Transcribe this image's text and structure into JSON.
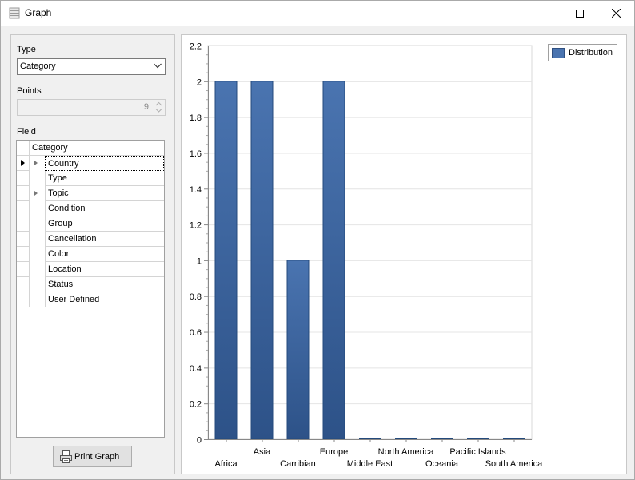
{
  "window": {
    "title": "Graph"
  },
  "controls": {
    "type_label": "Type",
    "type_value": "Category",
    "points_label": "Points",
    "points_value": "9",
    "field_label": "Field",
    "grid_header": "Category",
    "fields": [
      {
        "label": "Country",
        "expandable": true,
        "current": true,
        "selected": true
      },
      {
        "label": "Type",
        "expandable": false,
        "current": false,
        "selected": false
      },
      {
        "label": "Topic",
        "expandable": true,
        "current": false,
        "selected": false
      },
      {
        "label": "Condition",
        "expandable": false,
        "current": false,
        "selected": false
      },
      {
        "label": "Group",
        "expandable": false,
        "current": false,
        "selected": false
      },
      {
        "label": "Cancellation",
        "expandable": false,
        "current": false,
        "selected": false
      },
      {
        "label": "Color",
        "expandable": false,
        "current": false,
        "selected": false
      },
      {
        "label": "Location",
        "expandable": false,
        "current": false,
        "selected": false
      },
      {
        "label": "Status",
        "expandable": false,
        "current": false,
        "selected": false
      },
      {
        "label": "User Defined",
        "expandable": false,
        "current": false,
        "selected": false
      }
    ],
    "print_button": "Print Graph"
  },
  "icons": {
    "app": "database-icon",
    "minimize": "minimize-icon",
    "maximize": "maximize-icon",
    "close": "close-icon",
    "print": "printer-icon"
  },
  "colors": {
    "bar": "#4a74b0",
    "bar_dark": "#2d5288"
  },
  "chart_data": {
    "type": "bar",
    "categories": [
      "Africa",
      "Asia",
      "Carribian",
      "Europe",
      "Middle East",
      "North America",
      "Oceania",
      "Pacific Islands",
      "South America"
    ],
    "series": [
      {
        "name": "Distribution",
        "values": [
          2,
          2,
          1,
          2,
          0,
          0,
          0,
          0,
          0
        ]
      }
    ],
    "ylim": [
      0,
      2.2
    ],
    "yticks": [
      "0",
      "0.2",
      "0.4",
      "0.6",
      "0.8",
      "1",
      "1.2",
      "1.4",
      "1.6",
      "1.8",
      "2",
      "2.2"
    ],
    "grid": true,
    "legend": "top-right",
    "xlabel": "",
    "ylabel": ""
  }
}
